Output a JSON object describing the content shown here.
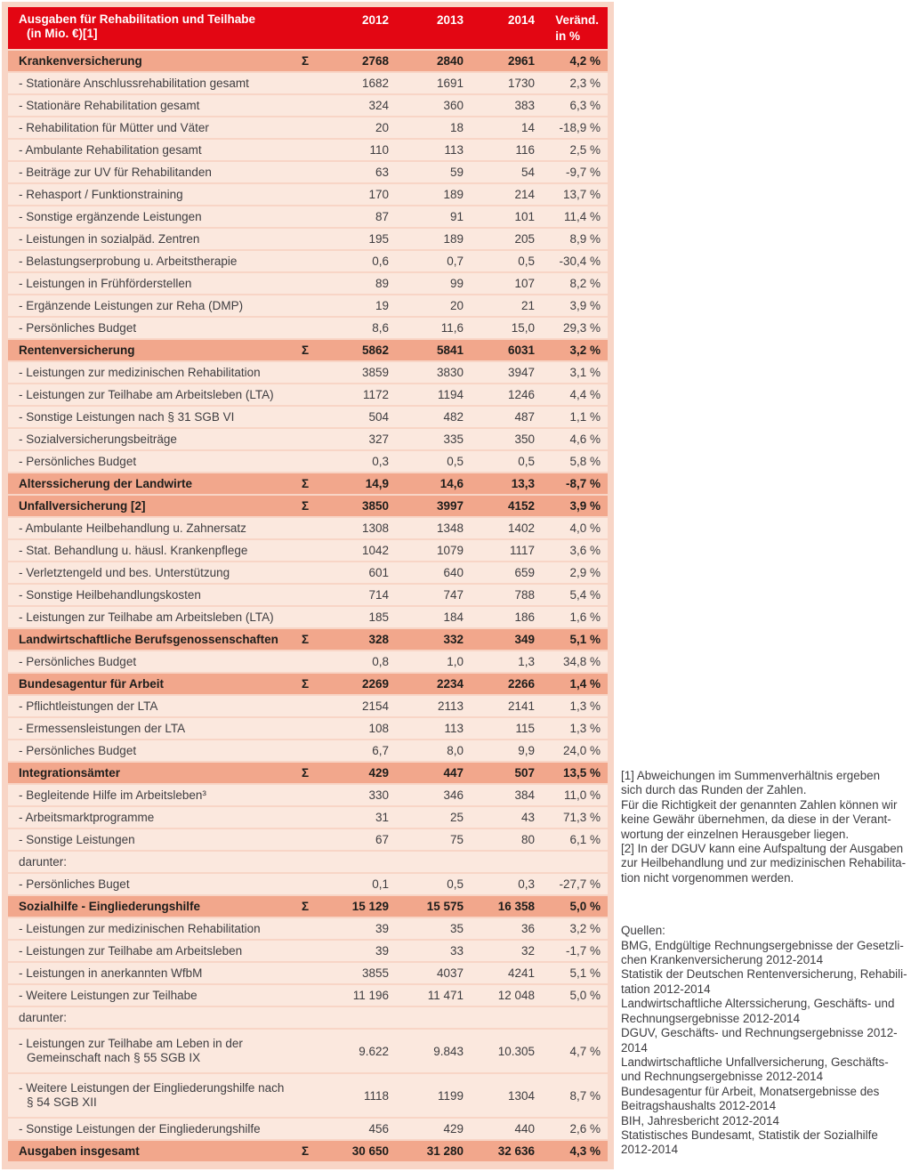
{
  "theme": {
    "header_red": "#E30613",
    "section_salmon": "#F2A78C",
    "row_pink": "#FBE8DE",
    "frame_pink": "#F8D5C6",
    "text_dark": "#1D1D1B",
    "text_body": "#3E3D40"
  },
  "table": {
    "sigma": "Σ",
    "title_lines": [
      "Ausgaben für Rehabilitation und Teilhabe",
      "(in Mio. €)[1]"
    ],
    "columns": [
      "2012",
      "2013",
      "2014"
    ],
    "change_column_lines": [
      "Veränd.",
      "in %"
    ],
    "rows": [
      {
        "type": "section",
        "label": "Krankenversicherung",
        "sigma": true,
        "values": [
          "2768",
          "2840",
          "2961",
          "4,2 %"
        ]
      },
      {
        "type": "item",
        "label": "- Stationäre Anschlussrehabilitation gesamt",
        "values": [
          "1682",
          "1691",
          "1730",
          "2,3 %"
        ]
      },
      {
        "type": "item",
        "label": "- Stationäre Rehabilitation gesamt",
        "values": [
          "324",
          "360",
          "383",
          "6,3 %"
        ]
      },
      {
        "type": "item",
        "label": "- Rehabilitation für Mütter und Väter",
        "values": [
          "20",
          "18",
          "14",
          "-18,9 %"
        ]
      },
      {
        "type": "item",
        "label": "- Ambulante Rehabilitation gesamt",
        "values": [
          "110",
          "113",
          "116",
          "2,5 %"
        ]
      },
      {
        "type": "item",
        "label": "- Beiträge zur UV für Rehabilitanden",
        "values": [
          "63",
          "59",
          "54",
          "-9,7 %"
        ]
      },
      {
        "type": "item",
        "label": "- Rehasport / Funktionstraining",
        "values": [
          "170",
          "189",
          "214",
          "13,7 %"
        ]
      },
      {
        "type": "item",
        "label": "- Sonstige ergänzende Leistungen",
        "values": [
          "87",
          "91",
          "101",
          "11,4 %"
        ]
      },
      {
        "type": "item",
        "label": "- Leistungen in sozialpäd. Zentren",
        "values": [
          "195",
          "189",
          "205",
          "8,9 %"
        ]
      },
      {
        "type": "item",
        "label": "- Belastungserprobung u. Arbeitstherapie",
        "values": [
          "0,6",
          "0,7",
          "0,5",
          "-30,4 %"
        ]
      },
      {
        "type": "item",
        "label": "- Leistungen in Frühförderstellen",
        "values": [
          "89",
          "99",
          "107",
          "8,2 %"
        ]
      },
      {
        "type": "item",
        "label": "- Ergänzende Leistungen zur Reha (DMP)",
        "values": [
          "19",
          "20",
          "21",
          "3,9 %"
        ]
      },
      {
        "type": "item",
        "label": "- Persönliches Budget",
        "values": [
          "8,6",
          "11,6",
          "15,0",
          "29,3 %"
        ]
      },
      {
        "type": "section",
        "label": "Rentenversicherung",
        "sigma": true,
        "values": [
          "5862",
          "5841",
          "6031",
          "3,2 %"
        ]
      },
      {
        "type": "item",
        "label": "- Leistungen zur medizinischen Rehabilitation",
        "values": [
          "3859",
          "3830",
          "3947",
          "3,1 %"
        ]
      },
      {
        "type": "item",
        "label": "- Leistungen zur Teilhabe am Arbeitsleben (LTA)",
        "values": [
          "1172",
          "1194",
          "1246",
          "4,4 %"
        ]
      },
      {
        "type": "item",
        "label": "- Sonstige Leistungen nach § 31 SGB VI",
        "values": [
          "504",
          "482",
          "487",
          "1,1 %"
        ]
      },
      {
        "type": "item",
        "label": "- Sozialversicherungsbeiträge",
        "values": [
          "327",
          "335",
          "350",
          "4,6 %"
        ]
      },
      {
        "type": "item",
        "label": "- Persönliches Budget",
        "values": [
          "0,3",
          "0,5",
          "0,5",
          "5,8 %"
        ]
      },
      {
        "type": "section",
        "label": "Alterssicherung der Landwirte",
        "sigma": true,
        "values": [
          "14,9",
          "14,6",
          "13,3",
          "-8,7 %"
        ]
      },
      {
        "type": "section",
        "label": "Unfallversicherung [2]",
        "sigma": true,
        "values": [
          "3850",
          "3997",
          "4152",
          "3,9 %"
        ]
      },
      {
        "type": "item",
        "label": "- Ambulante Heilbehandlung u. Zahnersatz",
        "values": [
          "1308",
          "1348",
          "1402",
          "4,0 %"
        ]
      },
      {
        "type": "item",
        "label": "- Stat. Behandlung u. häusl. Krankenpflege",
        "values": [
          "1042",
          "1079",
          "1117",
          "3,6 %"
        ]
      },
      {
        "type": "item",
        "label": "- Verletztengeld und bes. Unterstützung",
        "values": [
          "601",
          "640",
          "659",
          "2,9 %"
        ]
      },
      {
        "type": "item",
        "label": "- Sonstige Heilbehandlungskosten",
        "values": [
          "714",
          "747",
          "788",
          "5,4 %"
        ]
      },
      {
        "type": "item",
        "label": "- Leistungen zur Teilhabe am Arbeitsleben (LTA)",
        "values": [
          "185",
          "184",
          "186",
          "1,6 %"
        ]
      },
      {
        "type": "section",
        "label": "Landwirtschaftliche Berufsgenossenschaften",
        "sigma": true,
        "values": [
          "328",
          "332",
          "349",
          "5,1 %"
        ]
      },
      {
        "type": "item",
        "label": "- Persönliches Budget",
        "values": [
          "0,8",
          "1,0",
          "1,3",
          "34,8 %"
        ]
      },
      {
        "type": "section",
        "label": "Bundesagentur für Arbeit",
        "sigma": true,
        "values": [
          "2269",
          "2234",
          "2266",
          "1,4 %"
        ]
      },
      {
        "type": "item",
        "label": "- Pflichtleistungen der LTA",
        "values": [
          "2154",
          "2113",
          "2141",
          "1,3 %"
        ]
      },
      {
        "type": "item",
        "label": "- Ermessensleistungen der LTA",
        "values": [
          "108",
          "113",
          "115",
          "1,3 %"
        ]
      },
      {
        "type": "item",
        "label": "- Persönliches Budget",
        "values": [
          "6,7",
          "8,0",
          "9,9",
          "24,0 %"
        ]
      },
      {
        "type": "section",
        "label": "Integrationsämter",
        "sigma": true,
        "values": [
          "429",
          "447",
          "507",
          "13,5 %"
        ]
      },
      {
        "type": "item",
        "label": "- Begleitende Hilfe im Arbeitsleben³",
        "values": [
          "330",
          "346",
          "384",
          "11,0 %"
        ]
      },
      {
        "type": "item",
        "label": "- Arbeitsmarktprogramme",
        "values": [
          "31",
          "25",
          "43",
          "71,3 %"
        ]
      },
      {
        "type": "item",
        "label": "- Sonstige Leistungen",
        "values": [
          "67",
          "75",
          "80",
          "6,1 %"
        ]
      },
      {
        "type": "plain",
        "label": "darunter:",
        "values": [
          "",
          "",
          "",
          ""
        ]
      },
      {
        "type": "item",
        "label": "- Persönliches Buget",
        "values": [
          "0,1",
          "0,5",
          "0,3",
          "-27,7 %"
        ]
      },
      {
        "type": "section",
        "label": "Sozialhilfe - Eingliederungshilfe",
        "sigma": true,
        "values": [
          "15 129",
          "15 575",
          "16 358",
          "5,0 %"
        ]
      },
      {
        "type": "item",
        "label": "- Leistungen zur medizinischen Rehabilitation",
        "values": [
          "39",
          "35",
          "36",
          "3,2 %"
        ]
      },
      {
        "type": "item",
        "label": "- Leistungen zur Teilhabe am Arbeitsleben",
        "values": [
          "39",
          "33",
          "32",
          "-1,7 %"
        ]
      },
      {
        "type": "item",
        "label": "- Leistungen in anerkannten WfbM",
        "values": [
          "3855",
          "4037",
          "4241",
          "5,1 %"
        ]
      },
      {
        "type": "item",
        "label": "- Weitere Leistungen zur Teilhabe",
        "values": [
          "11 196",
          "11 471",
          "12 048",
          "5,0 %"
        ]
      },
      {
        "type": "plain",
        "label": "darunter:",
        "values": [
          "",
          "",
          "",
          ""
        ]
      },
      {
        "type": "item",
        "tall": true,
        "label": "- Leistungen zur Teilhabe am Leben in der\nGemeinschaft nach § 55 SGB IX",
        "values": [
          "9.622",
          "9.843",
          "10.305",
          "4,7 %"
        ]
      },
      {
        "type": "item",
        "tall": true,
        "label": "- Weitere Leistungen der Eingliederungshilfe nach\n§ 54 SGB XII",
        "values": [
          "1118",
          "1199",
          "1304",
          "8,7 %"
        ]
      },
      {
        "type": "item",
        "label": "- Sonstige Leistungen der Eingliederungshilfe",
        "values": [
          "456",
          "429",
          "440",
          "2,6 %"
        ]
      },
      {
        "type": "total",
        "label": "Ausgaben insgesamt",
        "sigma": true,
        "values": [
          "30 650",
          "31 280",
          "32 636",
          "4,3 %"
        ]
      }
    ]
  },
  "notes": {
    "footnote_lines": [
      "[1] Abweichungen im Summenverhältnis ergeben",
      "sich durch das Runden der Zahlen.",
      "Für die Richtigkeit der genannten Zahlen können wir",
      "keine Gewähr übernehmen, da diese in der Verant-",
      "wortung der einzelnen Herausgeber liegen.",
      "[2] In der DGUV kann eine Aufspaltung der Ausgaben",
      "zur Heilbehandlung und zur medizinischen Rehabilita-",
      "tion nicht vorgenommen werden."
    ],
    "source_lines": [
      "Quellen:",
      "BMG, Endgültige Rechnungsergebnisse der Gesetzli-",
      "chen Krankenversicherung 2012-2014",
      "Statistik der Deutschen Rentenversicherung, Rehabili-",
      "tation 2012-2014",
      "Landwirtschaftliche Alterssicherung, Geschäfts- und",
      "Rechnungsergebnisse 2012-2014",
      "DGUV, Geschäfts- und Rechnungsergebnisse 2012-",
      "2014",
      "Landwirtschaftliche Unfallversicherung, Geschäfts-",
      "und Rechnungsergebnisse 2012-2014",
      "Bundesagentur für Arbeit, Monatsergebnisse des",
      "Beitragshaushalts 2012-2014",
      "BIH, Jahresbericht 2012-2014",
      "Statistisches Bundesamt, Statistik der Sozialhilfe",
      "2012-2014"
    ]
  }
}
